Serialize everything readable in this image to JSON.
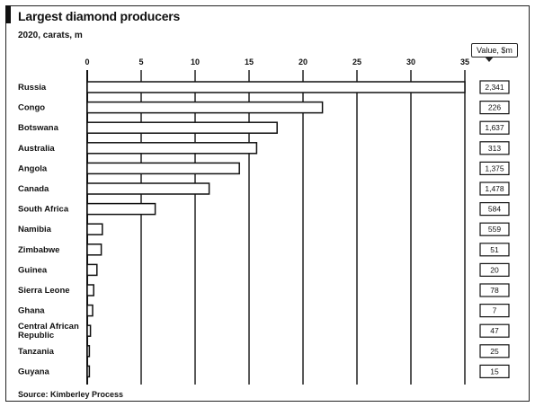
{
  "header": {
    "title": "Largest diamond producers",
    "subtitle": "2020, carats, m",
    "value_header": "Value, $m"
  },
  "footer": {
    "source": "Source: Kimberley Process"
  },
  "colors": {
    "bar_fill": "#ffffff",
    "bar_stroke": "#111111",
    "grid": "#111111"
  },
  "chart_data": {
    "type": "bar",
    "orientation": "horizontal",
    "title": "Largest diamond producers",
    "subtitle": "2020, carats, m",
    "categories": [
      "Russia",
      "Congo",
      "Botswana",
      "Australia",
      "Angola",
      "Canada",
      "South Africa",
      "Namibia",
      "Zimbabwe",
      "Guinea",
      "Sierra Leone",
      "Ghana",
      "Central African Republic",
      "Tanzania",
      "Guyana"
    ],
    "values": [
      35,
      21.8,
      17.6,
      15.7,
      14.1,
      11.3,
      6.3,
      1.4,
      1.3,
      0.9,
      0.6,
      0.5,
      0.3,
      0.2,
      0.2
    ],
    "value_labels": [
      "2,341",
      "226",
      "1,637",
      "313",
      "1,375",
      "1,478",
      "584",
      "559",
      "51",
      "20",
      "78",
      "7",
      "47",
      "25",
      "15"
    ],
    "value_label_title": "Value, $m",
    "ticks": [
      "0",
      "5",
      "10",
      "15",
      "20",
      "25",
      "30",
      "35"
    ],
    "xlim": [
      0,
      35
    ],
    "grid": true,
    "xlabel": "",
    "ylabel": "",
    "source": "Source: Kimberley Process"
  }
}
